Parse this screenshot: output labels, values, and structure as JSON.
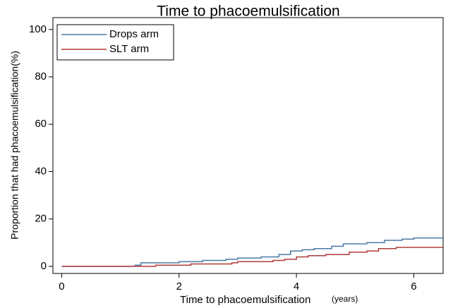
{
  "chart_data": {
    "type": "step",
    "title": "Time to phacoemulsification",
    "x_label": "Time to phacoemulsification",
    "x_label_unit": "(years)",
    "y_label": "Proportion that had phacoemulsification(%)",
    "xlim": [
      -0.15,
      6.5
    ],
    "ylim": [
      -3,
      105
    ],
    "xticks": [
      0,
      2,
      4,
      6
    ],
    "yticks": [
      0,
      20,
      40,
      60,
      80,
      100
    ],
    "legend": "top-left",
    "series": [
      {
        "name": "Drops arm",
        "color": "#4a7aa6",
        "x": [
          0,
          1.25,
          1.35,
          2.0,
          2.4,
          2.8,
          3.0,
          3.4,
          3.7,
          3.9,
          4.1,
          4.3,
          4.6,
          4.8,
          5.2,
          5.5,
          5.8,
          6.0,
          6.5
        ],
        "values": [
          0,
          0.5,
          1.5,
          2,
          2.5,
          3,
          3.5,
          4,
          5,
          6.5,
          7,
          7.5,
          8.5,
          9.5,
          10,
          11,
          11.5,
          12,
          12
        ]
      },
      {
        "name": "SLT arm",
        "color": "#b03a3a",
        "x": [
          0,
          1.6,
          2.2,
          2.9,
          3.0,
          3.6,
          3.8,
          4.0,
          4.2,
          4.5,
          4.9,
          5.2,
          5.4,
          5.7,
          6.5
        ],
        "values": [
          0,
          0.5,
          1,
          1.5,
          2,
          2.5,
          3,
          4,
          4.5,
          5,
          6,
          6.5,
          7.5,
          8,
          8
        ]
      }
    ]
  }
}
